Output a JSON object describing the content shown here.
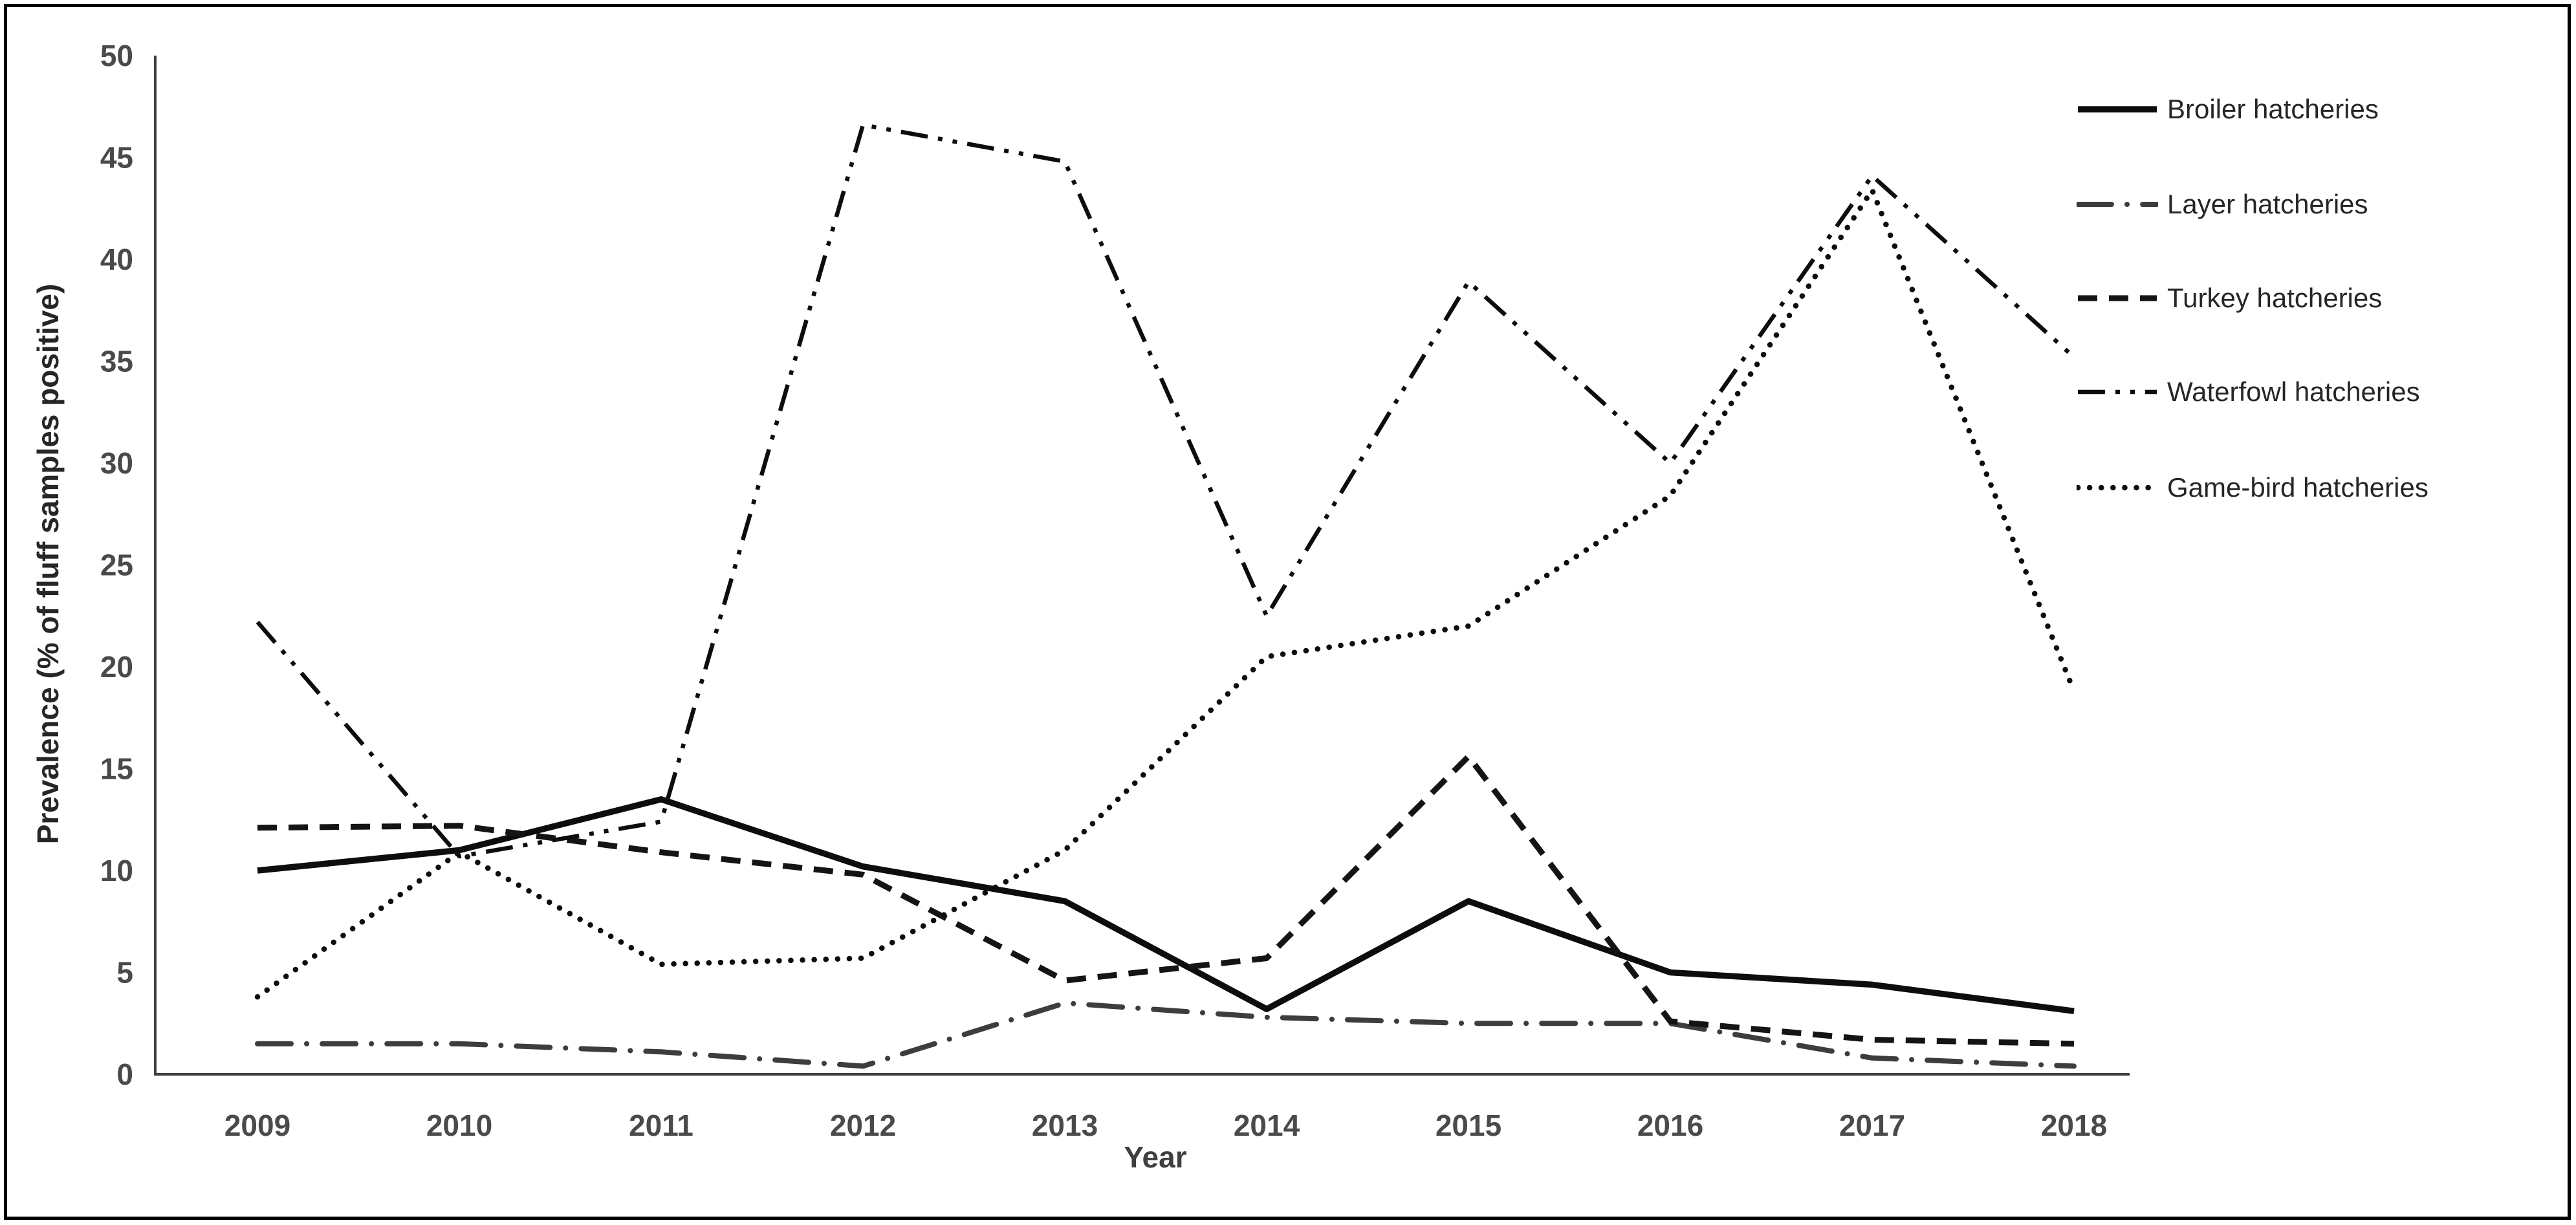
{
  "figure": {
    "y_axis_title": "Prevalence (% of fluff samples positive)",
    "x_axis_title": "Year"
  },
  "chart_data": {
    "type": "line",
    "title": "",
    "xlabel": "Year",
    "ylabel": "Prevalence (% of fluff samples positive)",
    "categories": [
      "2009",
      "2010",
      "2011",
      "2012",
      "2013",
      "2014",
      "2015",
      "2016",
      "2017",
      "2018"
    ],
    "y_ticks": [
      0,
      5,
      10,
      15,
      20,
      25,
      30,
      35,
      40,
      45,
      50
    ],
    "ylim": [
      0,
      50
    ],
    "grid": false,
    "legend_position": "right",
    "line_color": "#111111",
    "series": [
      {
        "name": "Broiler hatcheries",
        "line_style": "solid",
        "values": [
          10.0,
          11.0,
          13.5,
          10.2,
          8.5,
          3.2,
          8.5,
          5.0,
          4.4,
          3.1
        ]
      },
      {
        "name": "Layer hatcheries",
        "line_style": "dash-dot",
        "values": [
          1.5,
          1.5,
          1.1,
          0.4,
          3.5,
          2.8,
          2.5,
          2.5,
          0.8,
          0.4
        ]
      },
      {
        "name": "Turkey hatcheries",
        "line_style": "dashed",
        "values": [
          12.1,
          12.2,
          10.9,
          9.8,
          4.6,
          5.7,
          15.6,
          2.6,
          1.7,
          1.5
        ]
      },
      {
        "name": "Waterfowl hatcheries",
        "line_style": "dash-dot-dot",
        "values": [
          22.2,
          10.7,
          12.4,
          46.6,
          44.8,
          22.5,
          38.9,
          30.0,
          44.1,
          35.2
        ]
      },
      {
        "name": "Game-bird hatcheries",
        "line_style": "dotted",
        "values": [
          3.8,
          10.9,
          5.4,
          5.7,
          11.0,
          20.5,
          22.0,
          28.4,
          43.4,
          18.8
        ]
      }
    ]
  }
}
